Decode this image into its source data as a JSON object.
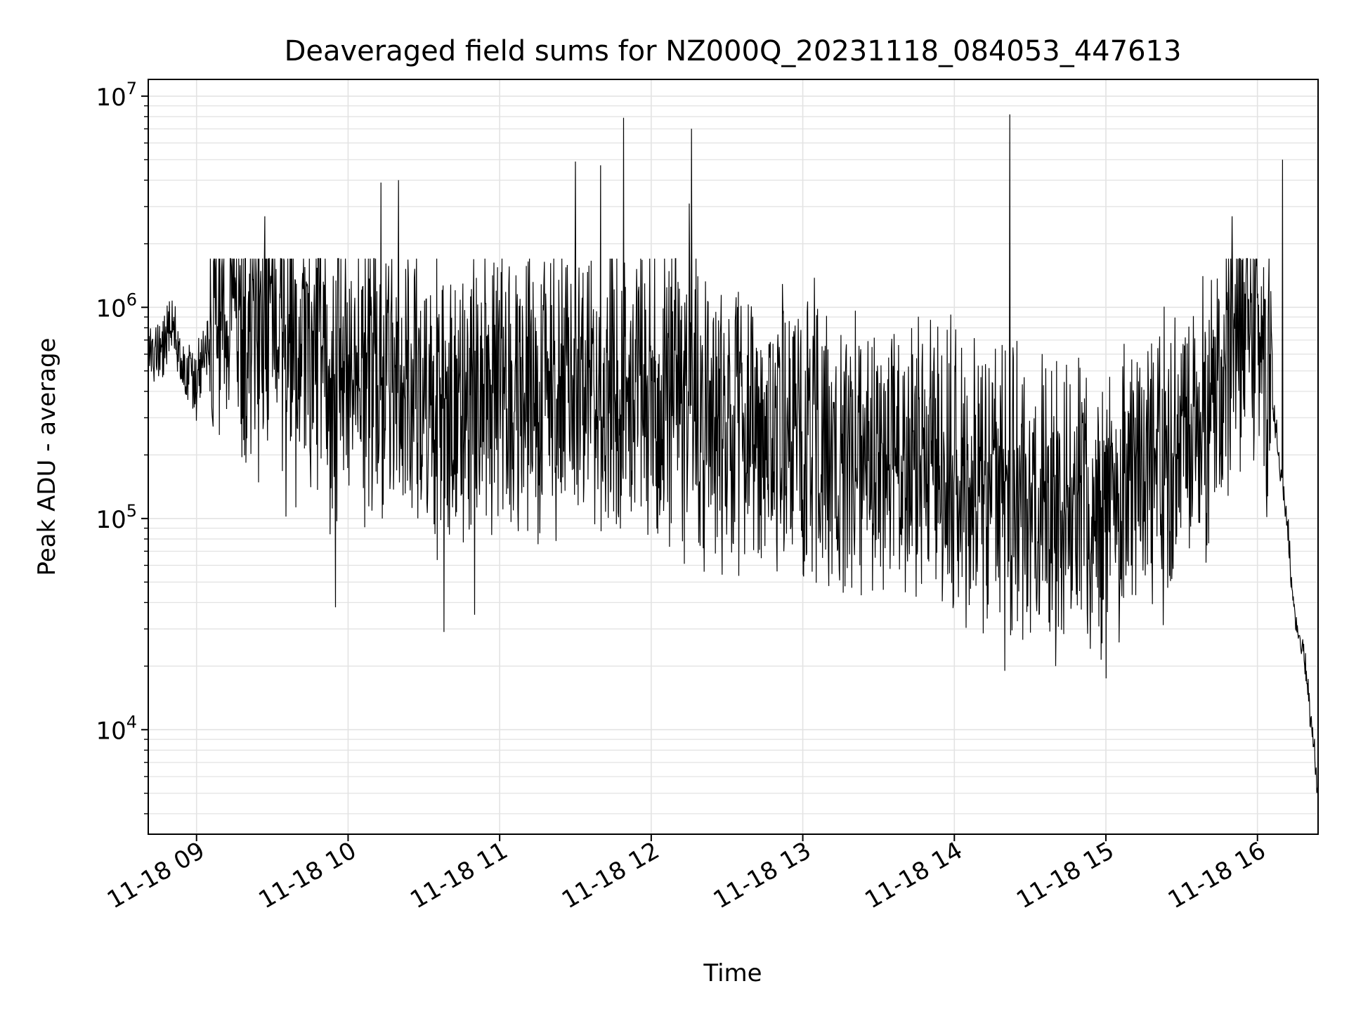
{
  "chart_data": {
    "type": "line",
    "title": "Deaveraged field sums for NZ000Q_20231118_084053_447613",
    "xlabel": "Time",
    "ylabel": "Peak ADU - average",
    "yscale": "log",
    "ylim": [
      3200,
      12000000
    ],
    "xlim": [
      "2023-11-18 08:40:53",
      "2023-11-18 16:24:00"
    ],
    "grid": "major and minor",
    "legend": "none",
    "line_color": "#000000",
    "grid_color": "#e3e3e3",
    "x_ticks": [
      {
        "label": "11-18 09",
        "value": "2023-11-18 09:00"
      },
      {
        "label": "11-18 10",
        "value": "2023-11-18 10:00"
      },
      {
        "label": "11-18 11",
        "value": "2023-11-18 11:00"
      },
      {
        "label": "11-18 12",
        "value": "2023-11-18 12:00"
      },
      {
        "label": "11-18 13",
        "value": "2023-11-18 13:00"
      },
      {
        "label": "11-18 14",
        "value": "2023-11-18 14:00"
      },
      {
        "label": "11-18 15",
        "value": "2023-11-18 15:00"
      },
      {
        "label": "11-18 16",
        "value": "2023-11-18 16:00"
      }
    ],
    "y_ticks": [
      {
        "base": "10",
        "exp": "4",
        "value": 10000
      },
      {
        "base": "10",
        "exp": "5",
        "value": 100000
      },
      {
        "base": "10",
        "exp": "6",
        "value": 1000000
      },
      {
        "base": "10",
        "exp": "7",
        "value": 10000000
      }
    ],
    "series": [
      {
        "values": [
          [
            "2023-11-18 08:41",
            560000
          ],
          [
            "2023-11-18 08:45",
            650000
          ],
          [
            "2023-11-18 08:50",
            720000
          ],
          [
            "2023-11-18 08:55",
            520000
          ],
          [
            "2023-11-18 09:00",
            430000
          ],
          [
            "2023-11-18 09:05",
            620000
          ],
          [
            "2023-11-18 09:10",
            850000
          ],
          [
            "2023-11-18 09:15",
            780000
          ],
          [
            "2023-11-18 09:20",
            700000
          ],
          [
            "2023-11-18 09:25",
            640000
          ],
          [
            "2023-11-18 09:30",
            900000
          ],
          [
            "2023-11-18 09:35",
            560000
          ],
          [
            "2023-11-18 09:40",
            480000
          ],
          [
            "2023-11-18 09:45",
            520000
          ],
          [
            "2023-11-18 09:50",
            420000
          ],
          [
            "2023-11-18 09:55",
            360000
          ],
          [
            "2023-11-18 10:00",
            400000
          ],
          [
            "2023-11-18 10:05",
            380000
          ],
          [
            "2023-11-18 10:10",
            450000
          ],
          [
            "2023-11-18 10:15",
            410000
          ],
          [
            "2023-11-18 10:20",
            330000
          ],
          [
            "2023-11-18 10:25",
            350000
          ],
          [
            "2023-11-18 10:30",
            360000
          ],
          [
            "2023-11-18 10:35",
            300000
          ],
          [
            "2023-11-18 10:40",
            280000
          ],
          [
            "2023-11-18 10:45",
            340000
          ],
          [
            "2023-11-18 10:50",
            320000
          ],
          [
            "2023-11-18 10:55",
            360000
          ],
          [
            "2023-11-18 11:00",
            380000
          ],
          [
            "2023-11-18 11:05",
            330000
          ],
          [
            "2023-11-18 11:10",
            350000
          ],
          [
            "2023-11-18 11:15",
            320000
          ],
          [
            "2023-11-18 11:20",
            360000
          ],
          [
            "2023-11-18 11:25",
            380000
          ],
          [
            "2023-11-18 11:30",
            410000
          ],
          [
            "2023-11-18 11:35",
            390000
          ],
          [
            "2023-11-18 11:40",
            370000
          ],
          [
            "2023-11-18 11:45",
            360000
          ],
          [
            "2023-11-18 11:50",
            400000
          ],
          [
            "2023-11-18 11:55",
            380000
          ],
          [
            "2023-11-18 12:00",
            350000
          ],
          [
            "2023-11-18 12:05",
            330000
          ],
          [
            "2023-11-18 12:10",
            320000
          ],
          [
            "2023-11-18 12:15",
            300000
          ],
          [
            "2023-11-18 12:20",
            280000
          ],
          [
            "2023-11-18 12:25",
            260000
          ],
          [
            "2023-11-18 12:30",
            250000
          ],
          [
            "2023-11-18 12:35",
            240000
          ],
          [
            "2023-11-18 12:40",
            230000
          ],
          [
            "2023-11-18 12:45",
            220000
          ],
          [
            "2023-11-18 12:50",
            215000
          ],
          [
            "2023-11-18 12:55",
            210000
          ],
          [
            "2023-11-18 13:00",
            205000
          ],
          [
            "2023-11-18 13:05",
            200000
          ],
          [
            "2023-11-18 13:10",
            200000
          ],
          [
            "2023-11-18 13:15",
            195000
          ],
          [
            "2023-11-18 13:20",
            190000
          ],
          [
            "2023-11-18 13:25",
            190000
          ],
          [
            "2023-11-18 13:30",
            185000
          ],
          [
            "2023-11-18 13:35",
            180000
          ],
          [
            "2023-11-18 13:40",
            180000
          ],
          [
            "2023-11-18 13:45",
            175000
          ],
          [
            "2023-11-18 13:50",
            170000
          ],
          [
            "2023-11-18 13:55",
            165000
          ],
          [
            "2023-11-18 14:00",
            160000
          ],
          [
            "2023-11-18 14:05",
            150000
          ],
          [
            "2023-11-18 14:10",
            140000
          ],
          [
            "2023-11-18 14:15",
            130000
          ],
          [
            "2023-11-18 14:20",
            120000
          ],
          [
            "2023-11-18 14:25",
            115000
          ],
          [
            "2023-11-18 14:30",
            110000
          ],
          [
            "2023-11-18 14:35",
            110000
          ],
          [
            "2023-11-18 14:40",
            105000
          ],
          [
            "2023-11-18 14:45",
            105000
          ],
          [
            "2023-11-18 14:50",
            100000
          ],
          [
            "2023-11-18 14:55",
            100000
          ],
          [
            "2023-11-18 15:00",
            105000
          ],
          [
            "2023-11-18 15:05",
            115000
          ],
          [
            "2023-11-18 15:10",
            130000
          ],
          [
            "2023-11-18 15:15",
            145000
          ],
          [
            "2023-11-18 15:20",
            160000
          ],
          [
            "2023-11-18 15:25",
            180000
          ],
          [
            "2023-11-18 15:30",
            210000
          ],
          [
            "2023-11-18 15:35",
            250000
          ],
          [
            "2023-11-18 15:40",
            300000
          ],
          [
            "2023-11-18 15:45",
            400000
          ],
          [
            "2023-11-18 15:50",
            520000
          ],
          [
            "2023-11-18 15:55",
            650000
          ],
          [
            "2023-11-18 16:00",
            700000
          ],
          [
            "2023-11-18 16:03",
            500000
          ],
          [
            "2023-11-18 16:06",
            320000
          ],
          [
            "2023-11-18 16:08",
            230000
          ],
          [
            "2023-11-18 16:10",
            130000
          ],
          [
            "2023-11-18 16:12",
            90000
          ],
          [
            "2023-11-18 16:14",
            40000
          ],
          [
            "2023-11-18 16:16",
            28000
          ],
          [
            "2023-11-18 16:18",
            24000
          ],
          [
            "2023-11-18 16:20",
            15000
          ],
          [
            "2023-11-18 16:22",
            9000
          ],
          [
            "2023-11-18 16:24",
            5000
          ]
        ],
        "spikes": [
          [
            "2023-11-18 09:27",
            2700000
          ],
          [
            "2023-11-18 10:13",
            3900000
          ],
          [
            "2023-11-18 10:20",
            4000000
          ],
          [
            "2023-11-18 11:30",
            4900000
          ],
          [
            "2023-11-18 11:40",
            4700000
          ],
          [
            "2023-11-18 11:49",
            7900000
          ],
          [
            "2023-11-18 12:16",
            7000000
          ],
          [
            "2023-11-18 12:15",
            3100000
          ],
          [
            "2023-11-18 14:22",
            8200000
          ],
          [
            "2023-11-18 15:50",
            2700000
          ],
          [
            "2023-11-18 16:10",
            5000000
          ]
        ],
        "dips": [
          [
            "2023-11-18 09:55",
            38000
          ],
          [
            "2023-11-18 10:38",
            29000
          ],
          [
            "2023-11-18 10:50",
            35000
          ],
          [
            "2023-11-18 12:21",
            56000
          ],
          [
            "2023-11-18 14:20",
            19000
          ],
          [
            "2023-11-18 15:00",
            17500
          ]
        ]
      }
    ]
  }
}
